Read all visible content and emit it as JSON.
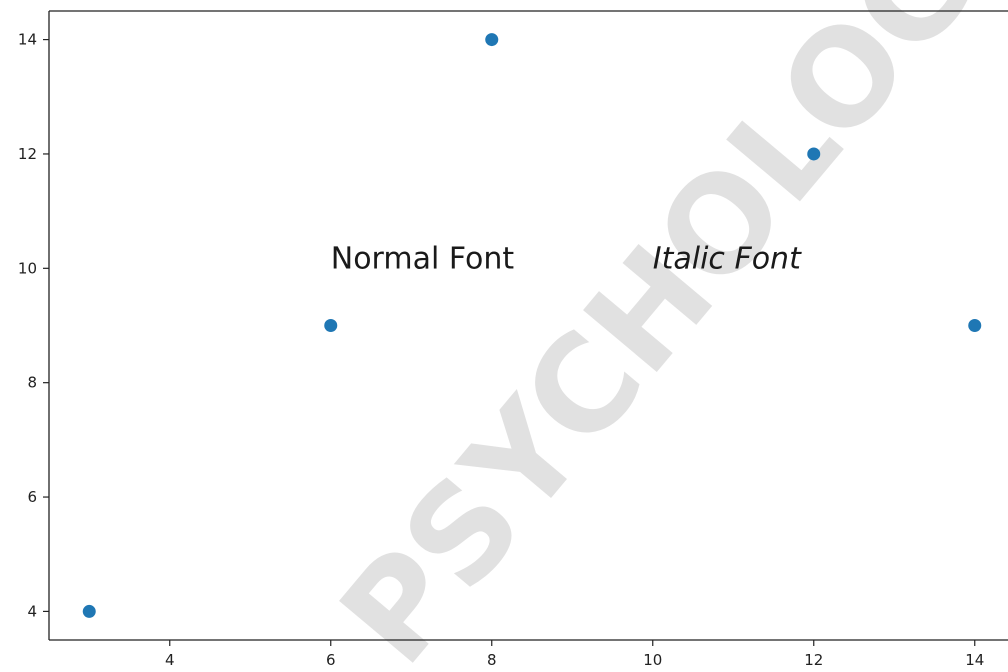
{
  "chart_data": {
    "type": "scatter",
    "x": [
      3,
      6,
      8,
      12,
      14
    ],
    "y": [
      4,
      9,
      14,
      12,
      9
    ],
    "xlim": [
      2.5,
      14.5
    ],
    "ylim": [
      3.5,
      14.5
    ],
    "xticks": [
      4,
      6,
      8,
      10,
      12,
      14
    ],
    "yticks": [
      4,
      6,
      8,
      10,
      12,
      14
    ],
    "grid": false,
    "marker_color": "#1f77b4",
    "annotations": [
      {
        "text": "Normal Font",
        "x": 6,
        "y": 10,
        "style": "normal"
      },
      {
        "text": "Italic Font",
        "x": 10,
        "y": 10,
        "style": "italic"
      }
    ]
  },
  "watermark": {
    "text": "PSYCHOLOGY.C"
  }
}
